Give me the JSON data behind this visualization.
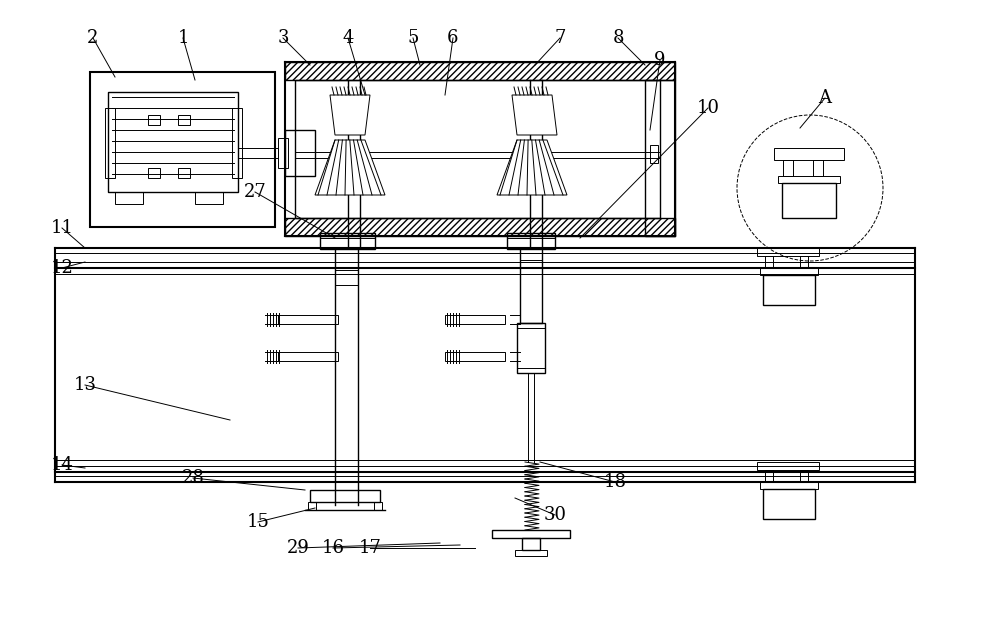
{
  "bg_color": "#ffffff",
  "fig_width": 10.0,
  "fig_height": 6.22,
  "lw_thin": 0.7,
  "lw_med": 1.0,
  "lw_thick": 1.5,
  "label_data": [
    [
      "2",
      93,
      38,
      115,
      77
    ],
    [
      "1",
      183,
      38,
      195,
      80
    ],
    [
      "3",
      283,
      38,
      310,
      65
    ],
    [
      "4",
      348,
      38,
      365,
      95
    ],
    [
      "5",
      413,
      38,
      420,
      65
    ],
    [
      "6",
      453,
      38,
      445,
      95
    ],
    [
      "7",
      560,
      38,
      535,
      65
    ],
    [
      "8",
      618,
      38,
      645,
      65
    ],
    [
      "9",
      660,
      60,
      650,
      130
    ],
    [
      "10",
      708,
      108,
      580,
      238
    ],
    [
      "11",
      62,
      228,
      85,
      248
    ],
    [
      "12",
      62,
      268,
      85,
      262
    ],
    [
      "13",
      85,
      385,
      230,
      420
    ],
    [
      "14",
      62,
      465,
      85,
      468
    ],
    [
      "27",
      255,
      192,
      335,
      238
    ],
    [
      "28",
      193,
      478,
      305,
      490
    ],
    [
      "15",
      258,
      522,
      315,
      508
    ],
    [
      "29",
      298,
      548,
      440,
      543
    ],
    [
      "16",
      333,
      548,
      460,
      545
    ],
    [
      "17",
      370,
      548,
      475,
      548
    ],
    [
      "18",
      615,
      482,
      540,
      462
    ],
    [
      "30",
      555,
      515,
      515,
      498
    ],
    [
      "A",
      825,
      98,
      800,
      128
    ]
  ]
}
